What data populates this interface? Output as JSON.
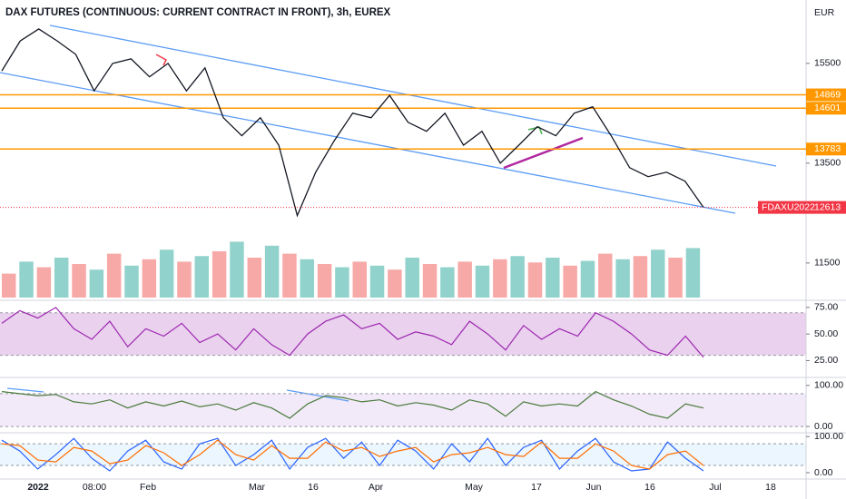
{
  "chart_data": {
    "type": "line",
    "title": "DAX FUTURES (CONTINUOUS: CURRENT CONTRACT IN FRONT), 3h, EUREX",
    "currency": "EUR",
    "time_labels": [
      "2022",
      "08:00",
      "Feb",
      "Mar",
      "16",
      "Apr",
      "May",
      "17",
      "Jun",
      "16",
      "Jul",
      "18"
    ],
    "series": [
      {
        "name": "FDAXU2022",
        "color": "#131722",
        "values": [
          15350,
          15950,
          16190,
          15950,
          15680,
          14950,
          15500,
          15590,
          15230,
          15500,
          14950,
          15410,
          14410,
          14050,
          14410,
          13860,
          12450,
          13320,
          13950,
          14500,
          14410,
          14860,
          14320,
          14140,
          14500,
          13860,
          14140,
          13500,
          13860,
          14230,
          14050,
          14500,
          14630,
          14050,
          13410,
          13230,
          13320,
          13140,
          12613
        ]
      }
    ],
    "last": {
      "name": "FDAXU2022",
      "value": 12613,
      "color": "#f23645"
    },
    "levels": [
      {
        "value": 14869
      },
      {
        "value": 14601
      },
      {
        "value": 13783
      }
    ],
    "level_color": "#ff9800",
    "ylim": [
      10770,
      16770
    ],
    "yticks": [
      11500,
      13500,
      15500
    ],
    "volume": {
      "up_color": "#26a69a",
      "down_color": "#ef5350",
      "ylim": [
        0,
        100
      ],
      "values": [
        30,
        45,
        38,
        50,
        42,
        35,
        55,
        40,
        48,
        60,
        45,
        52,
        58,
        70,
        50,
        65,
        55,
        48,
        42,
        38,
        45,
        40,
        35,
        50,
        42,
        38,
        45,
        40,
        48,
        52,
        44,
        50,
        40,
        46,
        55,
        48,
        52,
        60,
        50,
        62
      ]
    },
    "rsi": {
      "color": "#9c27b0",
      "band": [
        30,
        70
      ],
      "band_color": "#e1bee7",
      "ylim": [
        10,
        80
      ],
      "yticks": [
        {
          "value": 75,
          "label": "75.00"
        },
        {
          "value": 50,
          "label": "50.00"
        },
        {
          "value": 25,
          "label": "25.00"
        }
      ],
      "values": [
        60,
        72,
        65,
        75,
        55,
        45,
        62,
        38,
        55,
        48,
        60,
        42,
        50,
        35,
        55,
        40,
        30,
        50,
        62,
        68,
        55,
        60,
        45,
        52,
        48,
        40,
        62,
        50,
        35,
        58,
        45,
        55,
        48,
        70,
        62,
        50,
        35,
        30,
        48,
        28
      ]
    },
    "oscillator": {
      "color": "#4a7b3b",
      "band": [
        0,
        80
      ],
      "band_color": "#ede0f7",
      "ylim": [
        -13,
        115
      ],
      "yticks": [
        {
          "value": 100,
          "label": "100.00"
        },
        {
          "value": 0,
          "label": "0.00"
        }
      ],
      "values": [
        85,
        80,
        75,
        78,
        60,
        55,
        65,
        45,
        60,
        50,
        62,
        48,
        55,
        40,
        58,
        45,
        20,
        55,
        75,
        70,
        60,
        65,
        50,
        58,
        52,
        40,
        65,
        55,
        25,
        60,
        50,
        55,
        50,
        85,
        65,
        50,
        30,
        20,
        55,
        45
      ]
    },
    "stochastic": {
      "band": [
        20,
        80
      ],
      "band_color": "#e3f2fd",
      "ylim": [
        -15,
        108
      ],
      "yticks": [
        {
          "value": 100,
          "label": "100.00"
        },
        {
          "value": 0,
          "label": "0.00"
        }
      ],
      "series": [
        {
          "color": "#2962ff",
          "values": [
            90,
            60,
            10,
            50,
            95,
            40,
            5,
            60,
            90,
            30,
            10,
            80,
            95,
            20,
            50,
            90,
            10,
            70,
            95,
            40,
            85,
            20,
            90,
            60,
            10,
            80,
            30,
            95,
            20,
            70,
            90,
            10,
            60,
            95,
            30,
            5,
            10,
            85,
            40,
            5
          ]
        },
        {
          "color": "#ff6d00",
          "values": [
            80,
            75,
            35,
            30,
            70,
            60,
            25,
            35,
            75,
            55,
            20,
            50,
            90,
            50,
            35,
            75,
            40,
            40,
            85,
            60,
            70,
            45,
            60,
            70,
            30,
            50,
            55,
            70,
            50,
            45,
            85,
            40,
            40,
            80,
            60,
            20,
            10,
            50,
            60,
            20
          ]
        }
      ]
    }
  }
}
